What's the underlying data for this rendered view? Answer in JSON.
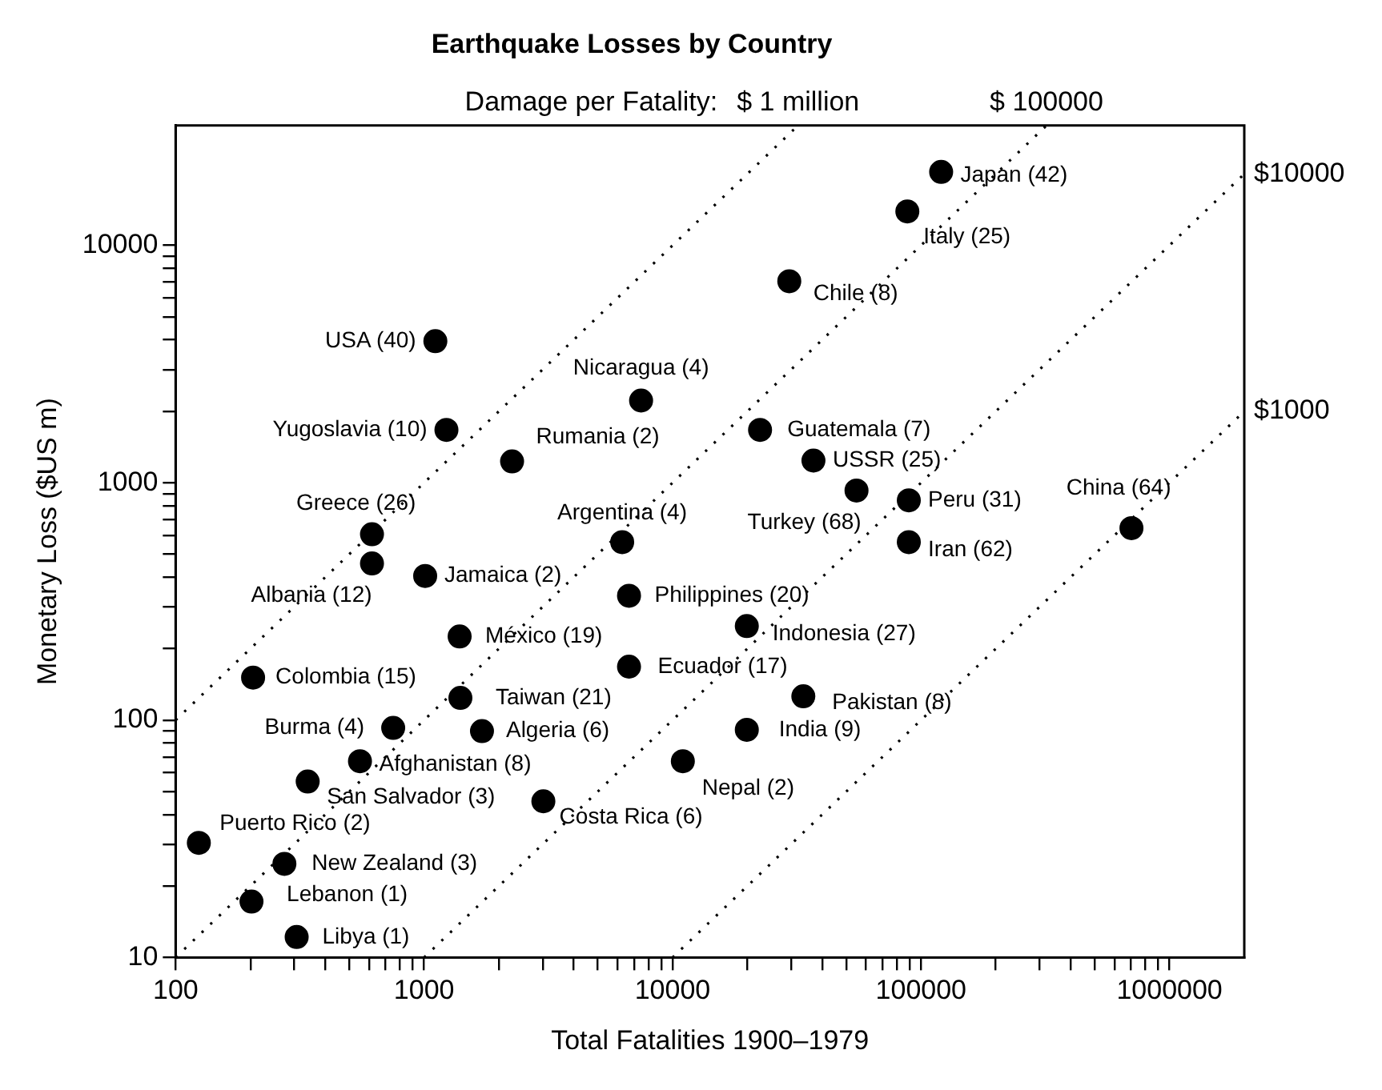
{
  "chart_data": {
    "type": "scatter",
    "title": "Earthquake Losses by Country",
    "xlabel": "Total Fatalities 1900–1979",
    "ylabel": "Monetary Loss ($US m)",
    "log": "xy",
    "grid": false,
    "legend": false,
    "marker": "circle",
    "xlim": [
      100,
      2000000
    ],
    "ylim": [
      10,
      32000
    ],
    "xticks": [
      100,
      {
        "value": 200,
        "label": null
      },
      {
        "value": 300,
        "label": null
      },
      {
        "value": 400,
        "label": null
      },
      {
        "value": 500,
        "label": null
      },
      {
        "value": 600,
        "label": null
      },
      {
        "value": 700,
        "label": null
      },
      {
        "value": 800,
        "label": null
      },
      {
        "value": 900,
        "label": null
      },
      1000,
      {
        "value": 2000,
        "label": null
      },
      {
        "value": 3000,
        "label": null
      },
      {
        "value": 4000,
        "label": null
      },
      {
        "value": 5000,
        "label": null
      },
      {
        "value": 6000,
        "label": null
      },
      {
        "value": 7000,
        "label": null
      },
      {
        "value": 8000,
        "label": null
      },
      {
        "value": 9000,
        "label": null
      },
      10000,
      {
        "value": 20000,
        "label": null
      },
      {
        "value": 30000,
        "label": null
      },
      {
        "value": 40000,
        "label": null
      },
      {
        "value": 50000,
        "label": null
      },
      {
        "value": 60000,
        "label": null
      },
      {
        "value": 70000,
        "label": null
      },
      {
        "value": 80000,
        "label": null
      },
      {
        "value": 90000,
        "label": null
      },
      100000,
      {
        "value": 200000,
        "label": null
      },
      {
        "value": 300000,
        "label": null
      },
      {
        "value": 400000,
        "label": null
      },
      {
        "value": 500000,
        "label": null
      },
      {
        "value": 600000,
        "label": null
      },
      {
        "value": 700000,
        "label": null
      },
      {
        "value": 800000,
        "label": null
      },
      {
        "value": 900000,
        "label": null
      },
      1000000
    ],
    "yticks": [
      10,
      {
        "value": 20,
        "label": null
      },
      {
        "value": 30,
        "label": null
      },
      {
        "value": 40,
        "label": null
      },
      {
        "value": 50,
        "label": null
      },
      {
        "value": 60,
        "label": null
      },
      {
        "value": 70,
        "label": null
      },
      {
        "value": 80,
        "label": null
      },
      {
        "value": 90,
        "label": null
      },
      100,
      {
        "value": 200,
        "label": null
      },
      {
        "value": 300,
        "label": null
      },
      {
        "value": 400,
        "label": null
      },
      {
        "value": 500,
        "label": null
      },
      {
        "value": 600,
        "label": null
      },
      {
        "value": 700,
        "label": null
      },
      {
        "value": 800,
        "label": null
      },
      {
        "value": 900,
        "label": null
      },
      1000,
      {
        "value": 2000,
        "label": null
      },
      {
        "value": 3000,
        "label": null
      },
      {
        "value": 4000,
        "label": null
      },
      {
        "value": 5000,
        "label": null
      },
      {
        "value": 6000,
        "label": null
      },
      {
        "value": 7000,
        "label": null
      },
      {
        "value": 8000,
        "label": null
      },
      {
        "value": 9000,
        "label": null
      },
      10000
    ],
    "series": [
      {
        "type": "scatter",
        "color": "#000000",
        "x": [
          120500,
          88100,
          29500,
          1110,
          7470,
          1230,
          2260,
          22500,
          36900,
          617,
          55000,
          89300,
          703000,
          6270,
          89300,
          617,
          1010,
          6680,
          1390,
          19900,
          205,
          6680,
          1400,
          33600,
          751,
          1710,
          19900,
          552,
          11000,
          340,
          3020,
          124,
          274,
          202,
          307
        ],
        "values": [
          20400,
          13900,
          7060,
          3950,
          2220,
          1670,
          1230,
          1670,
          1240,
          607,
          927,
          843,
          644,
          562,
          562,
          457,
          405,
          334,
          225,
          249,
          151,
          168,
          124,
          126,
          92.7,
          89.9,
          91,
          67.1,
          67.1,
          55.1,
          45.5,
          30.4,
          24.8,
          17.2,
          12.2
        ]
      },
      {
        "type": "line",
        "name": "$ 1 million",
        "color": "#000000",
        "line_style": "dotted",
        "marker": "none",
        "x": [
          100,
          32000
        ],
        "values": [
          100,
          32000
        ]
      },
      {
        "type": "line",
        "name": "$ 100000",
        "color": "#000000",
        "line_style": "dotted",
        "marker": "none",
        "x": [
          100,
          320000
        ],
        "values": [
          10,
          32000
        ]
      },
      {
        "type": "line",
        "name": "$10000",
        "color": "#000000",
        "line_style": "dotted",
        "marker": "none",
        "x": [
          1000,
          2000000
        ],
        "values": [
          10,
          20000
        ]
      },
      {
        "type": "line",
        "name": "$1000",
        "color": "#000000",
        "line_style": "dotted",
        "marker": "none",
        "x": [
          10000,
          2000000
        ],
        "values": [
          10,
          2000
        ]
      }
    ],
    "annotations": [
      "Damage per Fatality:",
      {
        "text": "Japan (42)",
        "x": 120500,
        "y": 20400
      },
      {
        "text": "Italy (25)",
        "x": 88100,
        "y": 13900
      },
      {
        "text": "Chile (8)",
        "x": 29500,
        "y": 7060
      },
      {
        "text": "USA (40)",
        "x": 1110,
        "y": 3950
      },
      {
        "text": "Nicaragua (4)",
        "x": 7470,
        "y": 2220
      },
      {
        "text": "Yugoslavia (10)",
        "x": 1230,
        "y": 1670
      },
      {
        "text": "Rumania (2)",
        "x": 2260,
        "y": 1230
      },
      {
        "text": "Guatemala (7)",
        "x": 22500,
        "y": 1670
      },
      {
        "text": "USSR (25)",
        "x": 36900,
        "y": 1240
      },
      {
        "text": "Greece (26)",
        "x": 617,
        "y": 607
      },
      {
        "text": "Turkey (68)",
        "x": 55000,
        "y": 927
      },
      {
        "text": "Peru (31)",
        "x": 89300,
        "y": 843
      },
      {
        "text": "China (64)",
        "x": 703000,
        "y": 644
      },
      {
        "text": "Argentina (4)",
        "x": 6270,
        "y": 562
      },
      {
        "text": "Iran (62)",
        "x": 89300,
        "y": 562
      },
      {
        "text": "Albania (12)",
        "x": 617,
        "y": 457
      },
      {
        "text": "Jamaica (2)",
        "x": 1010,
        "y": 405
      },
      {
        "text": "Philippines (20)",
        "x": 6680,
        "y": 334
      },
      {
        "text": "México (19)",
        "x": 1390,
        "y": 225
      },
      {
        "text": "Indonesia (27)",
        "x": 19900,
        "y": 249
      },
      {
        "text": "Colombia (15)",
        "x": 205,
        "y": 151
      },
      {
        "text": "Ecuador (17)",
        "x": 6680,
        "y": 168
      },
      {
        "text": "Taiwan (21)",
        "x": 1400,
        "y": 124
      },
      {
        "text": "Pakistan (8)",
        "x": 33600,
        "y": 126
      },
      {
        "text": "Burma (4)",
        "x": 751,
        "y": 92.7
      },
      {
        "text": "Algeria (6)",
        "x": 1710,
        "y": 89.9
      },
      {
        "text": "India (9)",
        "x": 19900,
        "y": 91
      },
      {
        "text": "Afghanistan (8)",
        "x": 552,
        "y": 67.1
      },
      {
        "text": "Nepal (2)",
        "x": 11000,
        "y": 67.1
      },
      {
        "text": "San Salvador (3)",
        "x": 340,
        "y": 55.1
      },
      {
        "text": "Costa Rica (6)",
        "x": 3020,
        "y": 45.5
      },
      {
        "text": "Puerto Rico (2)",
        "x": 124,
        "y": 30.4
      },
      {
        "text": "New Zealand (3)",
        "x": 274,
        "y": 24.8
      },
      {
        "text": "Lebanon (1)",
        "x": 202,
        "y": 17.2
      },
      {
        "text": "Libya (1)",
        "x": 307,
        "y": 12.2
      }
    ]
  }
}
